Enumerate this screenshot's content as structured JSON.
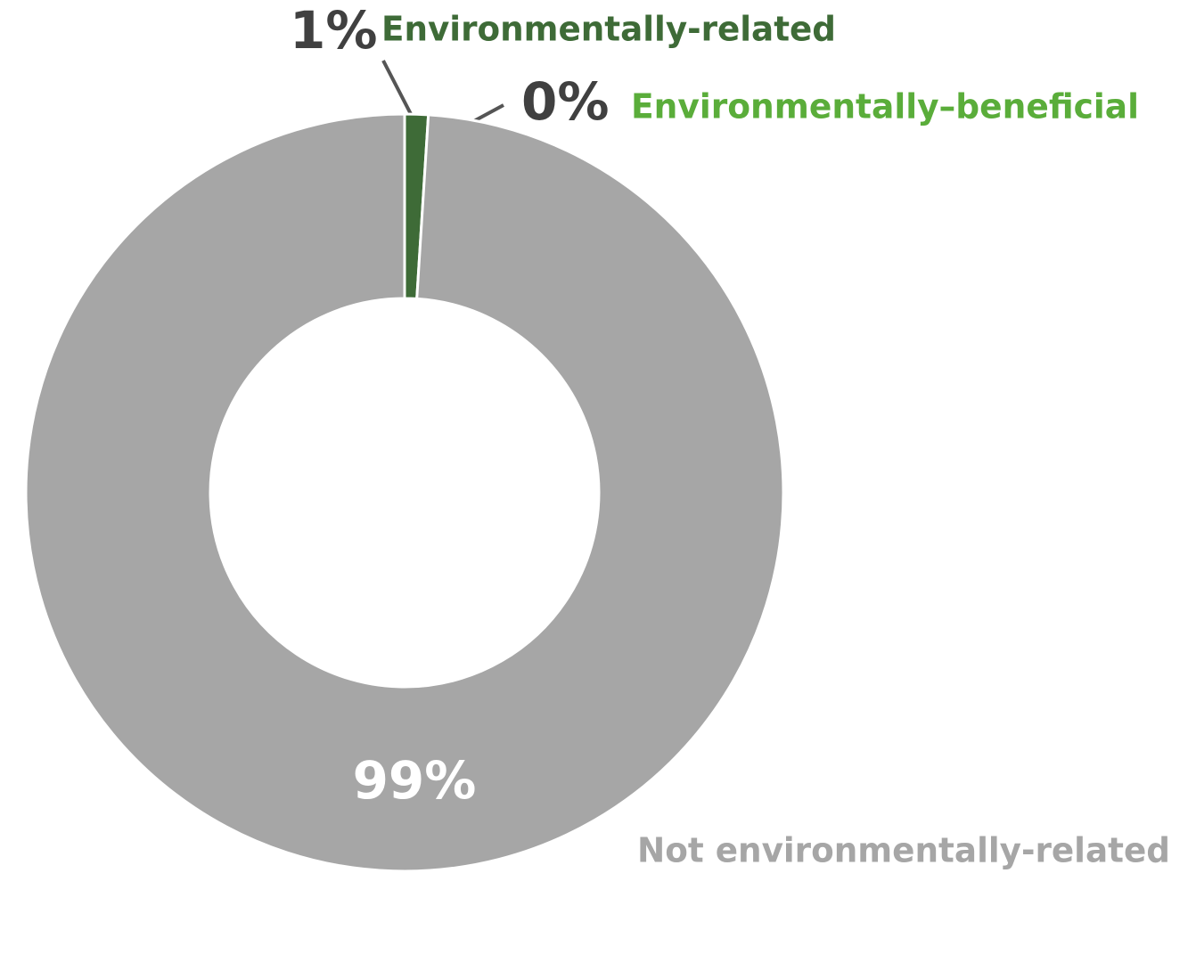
{
  "chart_data": {
    "type": "pie",
    "donut": true,
    "categories": [
      "Environmentally-related",
      "Environmentally–beneficial",
      "Not environmentally-related"
    ],
    "values": [
      1,
      0,
      99
    ],
    "value_labels": [
      "1%",
      "0%",
      "99%"
    ],
    "colors": [
      "#3e6b37",
      "#5aad3a",
      "#a6a6a6"
    ]
  }
}
